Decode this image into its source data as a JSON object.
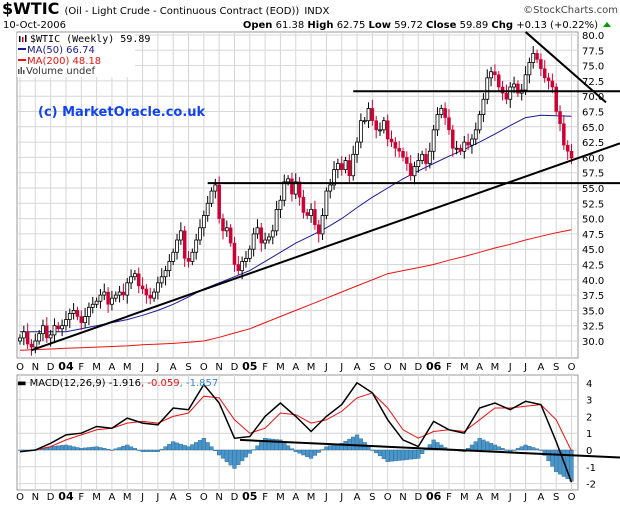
{
  "header": {
    "symbol": "$WTIC",
    "description": "(Oil - Light Crude - Continuous Contract (EOD))",
    "exchange": "INDX",
    "date": "10-Oct-2006",
    "brand": "©StockCharts.com",
    "open_label": "Open",
    "open": "61.38",
    "high_label": "High",
    "high": "62.75",
    "low_label": "Low",
    "low": "59.72",
    "close_label": "Close",
    "close": "59.89",
    "chg_label": "Chg",
    "chg": "+0.13 (+0.22%)",
    "up_color": "#009900"
  },
  "legend": {
    "price": "$WTIC (Weekly) 59.89",
    "ma50": "MA(50) 66.74",
    "ma200": "MA(200) 48.18",
    "volume": "Volume undef"
  },
  "watermark": "(c) MarketOracle.co.uk",
  "macd_legend": {
    "label": "MACD(12,26,9) -1.916",
    "signal": ", -0.059",
    "hist": ", -1.857"
  },
  "colors": {
    "up_candle": "#000000",
    "down_candle": "#cc0033",
    "ma50": "#1a1a9a",
    "ma200": "#ee1111",
    "macd": "#000000",
    "signal": "#ee1111",
    "histogram": "#4a94c8",
    "watermark": "#1144ee"
  },
  "chart_data": [
    {
      "type": "candlestick",
      "title": "$WTIC (Weekly)",
      "period": "weekly",
      "ylim": [
        27.5,
        81
      ],
      "y_ticks": [
        "30.0",
        "32.5",
        "35.0",
        "37.5",
        "40.0",
        "42.5",
        "45.0",
        "47.5",
        "50.0",
        "52.5",
        "55.0",
        "57.5",
        "60.0",
        "62.5",
        "65.0",
        "67.5",
        "70.0",
        "72.5",
        "75.0",
        "77.5",
        "80.0"
      ],
      "x_ticks": [
        "O",
        "N",
        "D",
        "04",
        "F",
        "M",
        "A",
        "M",
        "J",
        "J",
        "A",
        "S",
        "O",
        "N",
        "D",
        "05",
        "F",
        "M",
        "A",
        "M",
        "J",
        "J",
        "A",
        "S",
        "O",
        "N",
        "D",
        "06",
        "F",
        "M",
        "A",
        "M",
        "J",
        "J",
        "A",
        "S",
        "O"
      ],
      "grid": true,
      "weekly_close": [
        30.5,
        31.5,
        29.5,
        29.0,
        30.0,
        31.2,
        32.5,
        30.5,
        31.0,
        32.5,
        32.0,
        32.5,
        33.5,
        34.5,
        35.0,
        34.0,
        33.0,
        34.0,
        35.5,
        36.0,
        36.5,
        37.5,
        38.0,
        36.0,
        37.0,
        37.5,
        38.0,
        37.5,
        39.5,
        40.5,
        41.0,
        39.0,
        38.5,
        37.5,
        37.0,
        38.0,
        39.5,
        40.5,
        41.5,
        43.0,
        44.5,
        46.5,
        48.0,
        43.5,
        43.0,
        44.5,
        46.5,
        48.5,
        50.5,
        52.5,
        54.5,
        55.5,
        50.0,
        48.0,
        48.5,
        46.0,
        42.5,
        41.5,
        43.0,
        43.5,
        45.0,
        47.5,
        48.5,
        46.0,
        46.5,
        47.0,
        48.0,
        51.5,
        53.0,
        56.0,
        56.5,
        54.0,
        56.0,
        53.5,
        51.0,
        50.5,
        51.5,
        49.0,
        47.5,
        50.5,
        54.5,
        55.5,
        58.0,
        59.0,
        58.0,
        59.5,
        57.0,
        60.5,
        62.5,
        66.0,
        66.0,
        68.0,
        66.0,
        64.5,
        64.5,
        66.0,
        63.0,
        62.5,
        61.5,
        61.0,
        60.0,
        59.0,
        57.0,
        58.5,
        59.5,
        60.5,
        59.0,
        61.0,
        64.5,
        67.0,
        68.0,
        66.5,
        64.5,
        61.5,
        61.5,
        61.0,
        62.5,
        62.0,
        63.0,
        64.5,
        67.0,
        69.5,
        73.0,
        74.0,
        73.5,
        71.5,
        70.5,
        69.5,
        71.5,
        72.0,
        70.5,
        71.0,
        73.5,
        75.5,
        77.0,
        76.0,
        74.5,
        73.0,
        72.5,
        71.5,
        67.5,
        65.5,
        62.0,
        61.0,
        59.89
      ],
      "series": [
        {
          "name": "MA(50)",
          "monthly": [
            31.5,
            31.5,
            31.5,
            31.5,
            32.0,
            32.5,
            33.0,
            33.5,
            34.2,
            35.0,
            36.0,
            37.2,
            38.5,
            39.5,
            40.5,
            41.5,
            43.0,
            44.5,
            46.0,
            47.2,
            48.5,
            50.0,
            51.8,
            53.5,
            55.0,
            56.5,
            57.8,
            59.0,
            60.2,
            61.3,
            62.5,
            63.8,
            65.2,
            66.5,
            66.9,
            66.8,
            66.74
          ]
        },
        {
          "name": "MA(200)",
          "monthly": [
            28.5,
            28.6,
            28.7,
            28.8,
            28.9,
            29.0,
            29.1,
            29.2,
            29.4,
            29.5,
            29.6,
            29.8,
            30.0,
            30.6,
            31.3,
            32.0,
            33.0,
            34.0,
            35.0,
            36.0,
            37.0,
            38.0,
            39.0,
            40.0,
            41.0,
            41.5,
            42.0,
            42.5,
            43.2,
            43.8,
            44.5,
            45.2,
            45.8,
            46.5,
            47.1,
            47.7,
            48.18
          ]
        }
      ],
      "annotations": {
        "support_trendline": {
          "from": [
            "Oct 2003",
            28.5
          ],
          "to": [
            "Oct 2006",
            59.8
          ]
        },
        "horizontal_55_8": 55.8,
        "horizontal_70_8": 70.8,
        "down_trendline": {
          "from": [
            "Jul 2006",
            80.5
          ],
          "to": [
            "Oct 2006",
            69.0
          ]
        }
      }
    },
    {
      "type": "line",
      "title": "MACD(12,26,9)",
      "ylim": [
        -2.3,
        4.5
      ],
      "y_ticks": [
        "4",
        "3",
        "2",
        "1",
        "0",
        "-1",
        "-2"
      ],
      "grid": true,
      "series": [
        {
          "name": "MACD",
          "monthly": [
            -0.1,
            0.0,
            0.4,
            0.9,
            1.0,
            1.4,
            1.3,
            1.9,
            1.6,
            1.5,
            2.5,
            2.4,
            3.9,
            2.8,
            0.7,
            0.8,
            2.0,
            2.8,
            2.0,
            1.1,
            2.0,
            2.7,
            4.0,
            3.4,
            1.8,
            0.6,
            0.2,
            1.7,
            1.2,
            1.0,
            2.5,
            2.8,
            2.4,
            2.9,
            2.7,
            0.5,
            -1.916
          ]
        },
        {
          "name": "Signal",
          "monthly": [
            -0.1,
            0.0,
            0.2,
            0.6,
            0.9,
            1.2,
            1.3,
            1.6,
            1.7,
            1.6,
            2.0,
            2.2,
            3.2,
            3.1,
            1.8,
            1.0,
            1.3,
            2.2,
            2.1,
            1.6,
            1.8,
            2.3,
            3.1,
            3.4,
            2.5,
            1.2,
            0.7,
            1.1,
            1.2,
            1.1,
            1.8,
            2.5,
            2.5,
            2.6,
            2.7,
            1.8,
            -0.059
          ]
        },
        {
          "name": "Histogram",
          "derived": "MACD - Signal",
          "last": -1.857
        }
      ],
      "annotations": {
        "trendline": {
          "from": [
            "Dec 2004",
            0.6
          ],
          "to": [
            "Oct 2006",
            -0.3
          ]
        }
      }
    }
  ]
}
